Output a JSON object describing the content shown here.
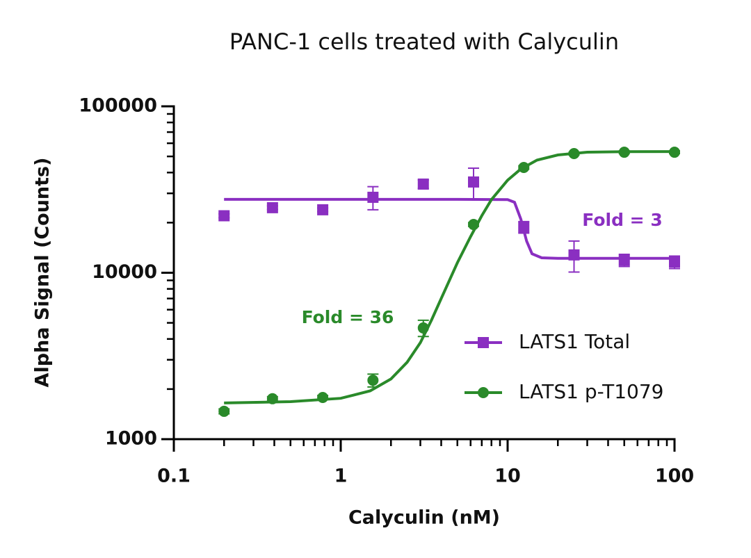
{
  "chart_data": {
    "type": "scatter",
    "title": "PANC-1 cells treated with Calyculin",
    "x_label": "Calyculin (nM)",
    "y_label": "Alpha Signal (Counts)",
    "x_log": true,
    "y_log": true,
    "xlim": [
      0.1,
      100
    ],
    "xticks": [
      0.1,
      1,
      10,
      100
    ],
    "xminorticks": [
      0.2,
      0.3,
      0.4,
      0.5,
      0.6,
      0.7,
      0.8,
      0.9,
      2,
      3,
      4,
      5,
      6,
      7,
      8,
      9,
      20,
      30,
      40,
      50,
      60,
      70,
      80,
      90
    ],
    "ylim": [
      1000,
      100000
    ],
    "yticks": [
      1000,
      10000,
      100000
    ],
    "yminorticks": [
      2000,
      3000,
      4000,
      5000,
      6000,
      7000,
      8000,
      9000,
      20000,
      30000,
      40000,
      50000,
      60000,
      70000,
      80000,
      90000
    ],
    "legend": "lower right",
    "series": [
      {
        "name": "LATS1 Total",
        "color": "#8a2fc1",
        "marker": "square",
        "x": [
          0.2,
          0.39,
          0.78,
          1.56,
          3.125,
          6.25,
          12.5,
          25,
          50,
          100
        ],
        "values": [
          22000,
          24600,
          23900,
          28400,
          34100,
          35100,
          18800,
          12800,
          11900,
          11600
        ],
        "errors": [
          600,
          600,
          600,
          4500,
          2000,
          7400,
          1500,
          2700,
          1000,
          1000
        ],
        "fit": {
          "x": [
            0.2,
            1,
            5,
            10,
            11,
            12,
            13,
            14,
            16,
            20,
            50,
            100
          ],
          "values": [
            27600,
            27600,
            27600,
            27500,
            26500,
            21000,
            15500,
            13000,
            12300,
            12200,
            12200,
            12200
          ]
        },
        "annotation": "Fold = 3"
      },
      {
        "name": "LATS1 p-T1079",
        "color": "#2a8a2a",
        "marker": "circle",
        "x": [
          0.2,
          0.39,
          0.78,
          1.56,
          3.125,
          6.25,
          12.5,
          25,
          50,
          100
        ],
        "values": [
          1470,
          1750,
          1780,
          2260,
          4660,
          19500,
          42900,
          52000,
          53000,
          53000
        ],
        "errors": [
          50,
          50,
          50,
          200,
          520,
          500,
          1000,
          1000,
          1000,
          1000
        ],
        "fit": {
          "x": [
            0.2,
            0.5,
            1,
            1.5,
            2,
            2.5,
            3,
            3.5,
            4,
            5,
            6,
            7,
            8,
            10,
            12,
            15,
            20,
            30,
            50,
            100
          ],
          "values": [
            1650,
            1680,
            1760,
            1950,
            2300,
            2900,
            3800,
            5200,
            7000,
            11500,
            16500,
            22000,
            27500,
            36000,
            42000,
            47500,
            51000,
            53000,
            53400,
            53500
          ]
        },
        "annotation": "Fold = 36"
      }
    ]
  }
}
